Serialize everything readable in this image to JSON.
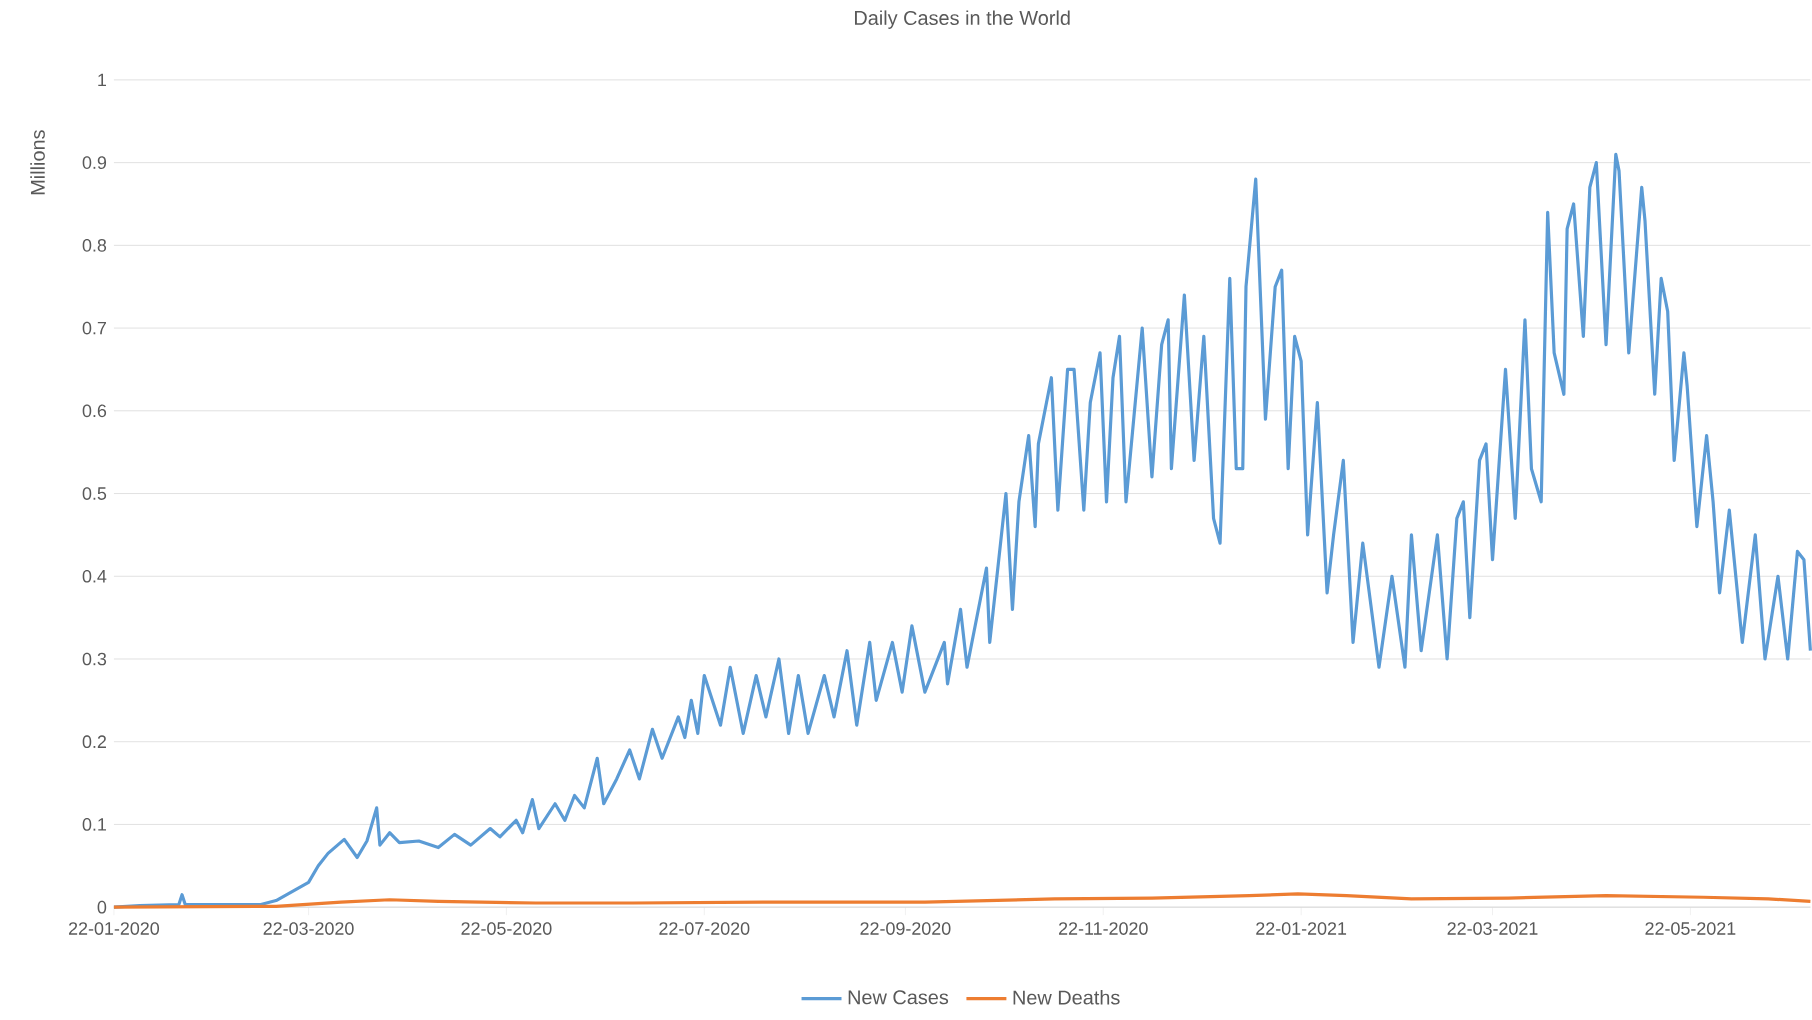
{
  "chart_data": {
    "type": "line",
    "title": "Daily Cases in the World",
    "ylabel": "Millions",
    "xlim": [
      "2020-01-22",
      "2021-06-28"
    ],
    "ylim": [
      0,
      1
    ],
    "xticks": [
      {
        "value": "2020-01-22",
        "label": "22-01-2020"
      },
      {
        "value": "2020-03-22",
        "label": "22-03-2020"
      },
      {
        "value": "2020-05-22",
        "label": "22-05-2020"
      },
      {
        "value": "2020-07-22",
        "label": "22-07-2020"
      },
      {
        "value": "2020-09-22",
        "label": "22-09-2020"
      },
      {
        "value": "2020-11-22",
        "label": "22-11-2020"
      },
      {
        "value": "2021-01-22",
        "label": "22-01-2021"
      },
      {
        "value": "2021-03-22",
        "label": "22-03-2021"
      },
      {
        "value": "2021-05-22",
        "label": "22-05-2021"
      }
    ],
    "yticks": [
      0,
      0.1,
      0.2,
      0.3,
      0.4,
      0.5,
      0.6,
      0.7,
      0.8,
      0.9,
      1
    ],
    "grid": "y",
    "legend": "bottom",
    "marker": "none",
    "series": [
      {
        "name": "New Cases",
        "color": "#5b9bd5",
        "x": [
          "2020-01-22",
          "2020-01-30",
          "2020-02-11",
          "2020-02-12",
          "2020-02-13",
          "2020-03-07",
          "2020-03-12",
          "2020-03-22",
          "2020-03-25",
          "2020-03-28",
          "2020-04-02",
          "2020-04-06",
          "2020-04-09",
          "2020-04-12",
          "2020-04-13",
          "2020-04-16",
          "2020-04-19",
          "2020-04-25",
          "2020-05-01",
          "2020-05-06",
          "2020-05-11",
          "2020-05-17",
          "2020-05-20",
          "2020-05-25",
          "2020-05-27",
          "2020-05-30",
          "2020-06-01",
          "2020-06-06",
          "2020-06-09",
          "2020-06-12",
          "2020-06-15",
          "2020-06-19",
          "2020-06-21",
          "2020-06-25",
          "2020-06-29",
          "2020-07-02",
          "2020-07-06",
          "2020-07-09",
          "2020-07-14",
          "2020-07-16",
          "2020-07-18",
          "2020-07-20",
          "2020-07-22",
          "2020-07-27",
          "2020-07-30",
          "2020-08-03",
          "2020-08-07",
          "2020-08-10",
          "2020-08-14",
          "2020-08-17",
          "2020-08-20",
          "2020-08-23",
          "2020-08-28",
          "2020-08-31",
          "2020-09-04",
          "2020-09-07",
          "2020-09-11",
          "2020-09-13",
          "2020-09-18",
          "2020-09-21",
          "2020-09-24",
          "2020-09-28",
          "2020-10-04",
          "2020-10-05",
          "2020-10-09",
          "2020-10-11",
          "2020-10-17",
          "2020-10-18",
          "2020-10-23",
          "2020-10-25",
          "2020-10-27",
          "2020-10-30",
          "2020-11-01",
          "2020-11-02",
          "2020-11-06",
          "2020-11-08",
          "2020-11-11",
          "2020-11-13",
          "2020-11-16",
          "2020-11-18",
          "2020-11-21",
          "2020-11-23",
          "2020-11-25",
          "2020-11-27",
          "2020-11-29",
          "2020-12-04",
          "2020-12-07",
          "2020-12-10",
          "2020-12-12",
          "2020-12-13",
          "2020-12-17",
          "2020-12-20",
          "2020-12-23",
          "2020-12-26",
          "2020-12-28",
          "2020-12-31",
          "2021-01-02",
          "2021-01-04",
          "2021-01-05",
          "2021-01-08",
          "2021-01-11",
          "2021-01-14",
          "2021-01-16",
          "2021-01-18",
          "2021-01-20",
          "2021-01-22",
          "2021-01-24",
          "2021-01-27",
          "2021-01-30",
          "2021-02-01",
          "2021-02-04",
          "2021-02-07",
          "2021-02-10",
          "2021-02-15",
          "2021-02-19",
          "2021-02-23",
          "2021-02-25",
          "2021-02-28",
          "2021-03-05",
          "2021-03-08",
          "2021-03-11",
          "2021-03-13",
          "2021-03-15",
          "2021-03-18",
          "2021-03-20",
          "2021-03-22",
          "2021-03-26",
          "2021-03-29",
          "2021-04-01",
          "2021-04-03",
          "2021-04-06",
          "2021-04-08",
          "2021-04-10",
          "2021-04-13",
          "2021-04-14",
          "2021-04-16",
          "2021-04-19",
          "2021-04-21",
          "2021-04-23",
          "2021-04-26",
          "2021-04-29",
          "2021-04-30",
          "2021-05-03",
          "2021-05-07",
          "2021-05-08",
          "2021-05-11",
          "2021-05-13",
          "2021-05-15",
          "2021-05-17",
          "2021-05-20",
          "2021-05-21",
          "2021-05-24",
          "2021-05-27",
          "2021-05-29",
          "2021-05-31",
          "2021-06-03",
          "2021-06-07",
          "2021-06-11",
          "2021-06-14",
          "2021-06-18",
          "2021-06-21",
          "2021-06-24",
          "2021-06-26",
          "2021-06-28"
        ],
        "values": [
          0,
          0.002,
          0.003,
          0.015,
          0.003,
          0.003,
          0.008,
          0.03,
          0.05,
          0.065,
          0.082,
          0.06,
          0.08,
          0.12,
          0.075,
          0.09,
          0.078,
          0.08,
          0.072,
          0.088,
          0.075,
          0.095,
          0.085,
          0.105,
          0.09,
          0.13,
          0.095,
          0.125,
          0.105,
          0.135,
          0.12,
          0.18,
          0.125,
          0.155,
          0.19,
          0.155,
          0.215,
          0.18,
          0.23,
          0.205,
          0.25,
          0.21,
          0.28,
          0.22,
          0.29,
          0.21,
          0.28,
          0.23,
          0.3,
          0.21,
          0.28,
          0.21,
          0.28,
          0.23,
          0.31,
          0.22,
          0.32,
          0.25,
          0.32,
          0.26,
          0.34,
          0.26,
          0.32,
          0.27,
          0.36,
          0.29,
          0.41,
          0.32,
          0.5,
          0.36,
          0.49,
          0.57,
          0.46,
          0.56,
          0.64,
          0.48,
          0.65,
          0.65,
          0.48,
          0.61,
          0.67,
          0.49,
          0.64,
          0.69,
          0.49,
          0.7,
          0.52,
          0.68,
          0.71,
          0.53,
          0.74,
          0.54,
          0.69,
          0.47,
          0.44,
          0.76,
          0.53,
          0.53,
          0.75,
          0.88,
          0.59,
          0.75,
          0.77,
          0.53,
          0.69,
          0.66,
          0.45,
          0.61,
          0.38,
          0.45,
          0.54,
          0.32,
          0.44,
          0.29,
          0.4,
          0.29,
          0.45,
          0.31,
          0.45,
          0.3,
          0.47,
          0.49,
          0.35,
          0.54,
          0.56,
          0.42,
          0.65,
          0.47,
          0.71,
          0.53,
          0.49,
          0.84,
          0.67,
          0.62,
          0.82,
          0.85,
          0.69,
          0.87,
          0.9,
          0.68,
          0.91,
          0.89,
          0.67,
          0.87,
          0.83,
          0.62,
          0.76,
          0.72,
          0.54,
          0.67,
          0.63,
          0.46,
          0.57,
          0.49,
          0.38,
          0.48,
          0.32,
          0.45,
          0.3,
          0.4,
          0.3,
          0.43,
          0.42,
          0.31
        ]
      },
      {
        "name": "New Deaths",
        "color": "#ed7d31",
        "x": [
          "2020-01-22",
          "2020-03-12",
          "2020-04-01",
          "2020-04-16",
          "2020-05-01",
          "2020-05-31",
          "2020-06-30",
          "2020-08-09",
          "2020-09-28",
          "2020-11-07",
          "2020-12-07",
          "2021-01-06",
          "2021-01-21",
          "2021-02-05",
          "2021-02-25",
          "2021-03-27",
          "2021-04-26",
          "2021-05-26",
          "2021-06-15",
          "2021-06-28"
        ],
        "values": [
          0,
          0.001,
          0.006,
          0.009,
          0.007,
          0.005,
          0.005,
          0.006,
          0.006,
          0.01,
          0.011,
          0.014,
          0.016,
          0.014,
          0.01,
          0.011,
          0.014,
          0.012,
          0.01,
          0.007
        ]
      }
    ]
  }
}
